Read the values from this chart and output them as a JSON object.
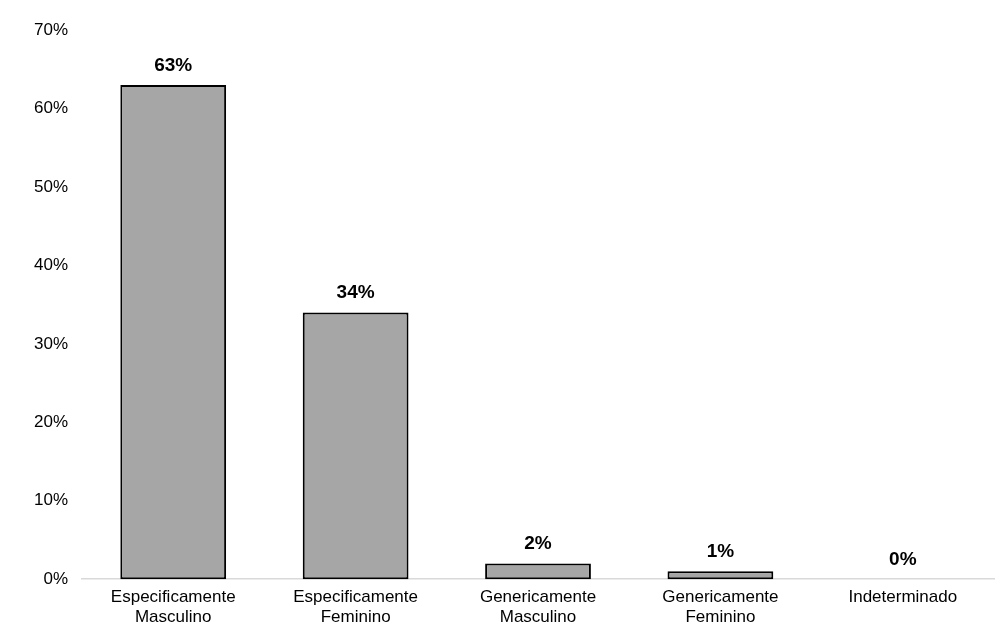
{
  "chart_data": {
    "type": "bar",
    "categories": [
      "Especificamente Masculino",
      "Especificamente Feminino",
      "Genericamente Masculino",
      "Genericamente Feminino",
      "Indeterminado"
    ],
    "values": [
      63,
      34,
      2,
      1,
      0
    ],
    "value_labels": [
      "63%",
      "34%",
      "2%",
      "1%",
      "0%"
    ],
    "color": "#a6a6a6",
    "ylim": [
      0,
      70
    ],
    "yticks": [
      {
        "value": 0,
        "label": "0%"
      },
      {
        "value": 10,
        "label": "10%"
      },
      {
        "value": 20,
        "label": "20%"
      },
      {
        "value": 30,
        "label": "30%"
      },
      {
        "value": 40,
        "label": "40%"
      },
      {
        "value": 50,
        "label": "50%"
      },
      {
        "value": 60,
        "label": "60%"
      },
      {
        "value": 70,
        "label": "70%"
      }
    ],
    "grid": false,
    "legend": false
  }
}
